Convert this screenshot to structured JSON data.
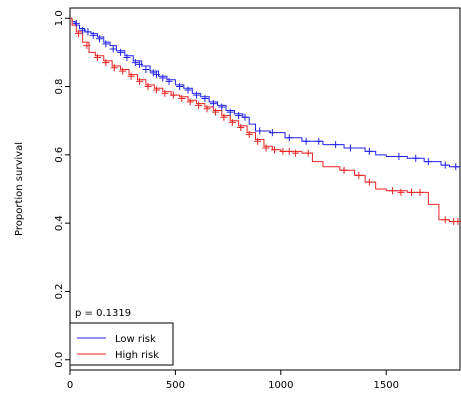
{
  "chart_data": {
    "type": "line",
    "subtype": "kaplan-meier",
    "ylabel": "Proportion survival",
    "xlabel": "",
    "xlim": [
      0,
      1850
    ],
    "ylim": [
      -0.03,
      1.03
    ],
    "x_ticks": [
      0,
      500,
      1000,
      1500
    ],
    "y_ticks": [
      0.0,
      0.2,
      0.4,
      0.6,
      0.8,
      1.0
    ],
    "y_tick_labels": [
      "0.0",
      "0.2",
      "0.4",
      "0.6",
      "0.8",
      "1.0"
    ],
    "annotation": "p = 0.1319",
    "legend_position": "bottom-left",
    "grid": false,
    "series": [
      {
        "name": "Low risk",
        "color": "#2222ee",
        "steps": [
          [
            0,
            1.0
          ],
          [
            10,
            0.99
          ],
          [
            25,
            0.98
          ],
          [
            45,
            0.97
          ],
          [
            70,
            0.96
          ],
          [
            100,
            0.955
          ],
          [
            130,
            0.945
          ],
          [
            160,
            0.93
          ],
          [
            190,
            0.92
          ],
          [
            220,
            0.905
          ],
          [
            260,
            0.89
          ],
          [
            300,
            0.875
          ],
          [
            340,
            0.86
          ],
          [
            380,
            0.845
          ],
          [
            420,
            0.83
          ],
          [
            460,
            0.82
          ],
          [
            500,
            0.805
          ],
          [
            540,
            0.795
          ],
          [
            580,
            0.78
          ],
          [
            620,
            0.77
          ],
          [
            660,
            0.755
          ],
          [
            700,
            0.745
          ],
          [
            740,
            0.73
          ],
          [
            780,
            0.72
          ],
          [
            820,
            0.71
          ],
          [
            850,
            0.69
          ],
          [
            880,
            0.67
          ],
          [
            950,
            0.665
          ],
          [
            1020,
            0.65
          ],
          [
            1100,
            0.64
          ],
          [
            1200,
            0.63
          ],
          [
            1300,
            0.62
          ],
          [
            1400,
            0.61
          ],
          [
            1450,
            0.6
          ],
          [
            1500,
            0.595
          ],
          [
            1600,
            0.59
          ],
          [
            1680,
            0.58
          ],
          [
            1760,
            0.57
          ],
          [
            1800,
            0.565
          ],
          [
            1850,
            0.565
          ]
        ],
        "censor": [
          [
            30,
            0.985
          ],
          [
            60,
            0.965
          ],
          [
            85,
            0.96
          ],
          [
            110,
            0.95
          ],
          [
            140,
            0.94
          ],
          [
            170,
            0.925
          ],
          [
            205,
            0.91
          ],
          [
            240,
            0.9
          ],
          [
            270,
            0.885
          ],
          [
            310,
            0.87
          ],
          [
            330,
            0.865
          ],
          [
            360,
            0.85
          ],
          [
            395,
            0.84
          ],
          [
            410,
            0.835
          ],
          [
            440,
            0.825
          ],
          [
            470,
            0.815
          ],
          [
            520,
            0.8
          ],
          [
            560,
            0.79
          ],
          [
            600,
            0.775
          ],
          [
            640,
            0.765
          ],
          [
            680,
            0.75
          ],
          [
            720,
            0.74
          ],
          [
            760,
            0.725
          ],
          [
            800,
            0.715
          ],
          [
            830,
            0.71
          ],
          [
            900,
            0.67
          ],
          [
            960,
            0.665
          ],
          [
            1040,
            0.65
          ],
          [
            1120,
            0.64
          ],
          [
            1180,
            0.64
          ],
          [
            1260,
            0.63
          ],
          [
            1330,
            0.62
          ],
          [
            1420,
            0.61
          ],
          [
            1560,
            0.595
          ],
          [
            1640,
            0.59
          ],
          [
            1700,
            0.58
          ],
          [
            1780,
            0.57
          ],
          [
            1830,
            0.565
          ]
        ]
      },
      {
        "name": "High risk",
        "color": "#ee2222",
        "steps": [
          [
            0,
            1.0
          ],
          [
            10,
            0.98
          ],
          [
            30,
            0.96
          ],
          [
            60,
            0.93
          ],
          [
            90,
            0.9
          ],
          [
            120,
            0.89
          ],
          [
            160,
            0.875
          ],
          [
            200,
            0.86
          ],
          [
            240,
            0.85
          ],
          [
            280,
            0.835
          ],
          [
            320,
            0.82
          ],
          [
            360,
            0.805
          ],
          [
            400,
            0.795
          ],
          [
            440,
            0.785
          ],
          [
            480,
            0.775
          ],
          [
            520,
            0.77
          ],
          [
            560,
            0.76
          ],
          [
            600,
            0.75
          ],
          [
            640,
            0.74
          ],
          [
            680,
            0.73
          ],
          [
            720,
            0.715
          ],
          [
            760,
            0.7
          ],
          [
            800,
            0.685
          ],
          [
            840,
            0.665
          ],
          [
            880,
            0.645
          ],
          [
            920,
            0.625
          ],
          [
            960,
            0.615
          ],
          [
            1000,
            0.61
          ],
          [
            1100,
            0.605
          ],
          [
            1150,
            0.58
          ],
          [
            1200,
            0.565
          ],
          [
            1280,
            0.555
          ],
          [
            1350,
            0.54
          ],
          [
            1400,
            0.52
          ],
          [
            1450,
            0.5
          ],
          [
            1500,
            0.495
          ],
          [
            1600,
            0.49
          ],
          [
            1700,
            0.455
          ],
          [
            1750,
            0.41
          ],
          [
            1800,
            0.405
          ],
          [
            1850,
            0.405
          ]
        ],
        "censor": [
          [
            40,
            0.955
          ],
          [
            80,
            0.92
          ],
          [
            130,
            0.885
          ],
          [
            170,
            0.87
          ],
          [
            210,
            0.855
          ],
          [
            250,
            0.845
          ],
          [
            290,
            0.83
          ],
          [
            330,
            0.815
          ],
          [
            370,
            0.8
          ],
          [
            410,
            0.79
          ],
          [
            450,
            0.78
          ],
          [
            490,
            0.775
          ],
          [
            530,
            0.765
          ],
          [
            570,
            0.755
          ],
          [
            610,
            0.745
          ],
          [
            650,
            0.735
          ],
          [
            690,
            0.725
          ],
          [
            730,
            0.71
          ],
          [
            770,
            0.695
          ],
          [
            810,
            0.68
          ],
          [
            850,
            0.66
          ],
          [
            890,
            0.64
          ],
          [
            930,
            0.62
          ],
          [
            970,
            0.615
          ],
          [
            1010,
            0.61
          ],
          [
            1040,
            0.61
          ],
          [
            1070,
            0.605
          ],
          [
            1130,
            0.605
          ],
          [
            1300,
            0.555
          ],
          [
            1370,
            0.54
          ],
          [
            1420,
            0.52
          ],
          [
            1530,
            0.495
          ],
          [
            1570,
            0.49
          ],
          [
            1620,
            0.49
          ],
          [
            1660,
            0.49
          ],
          [
            1780,
            0.41
          ],
          [
            1820,
            0.405
          ],
          [
            1840,
            0.405
          ]
        ]
      }
    ]
  }
}
